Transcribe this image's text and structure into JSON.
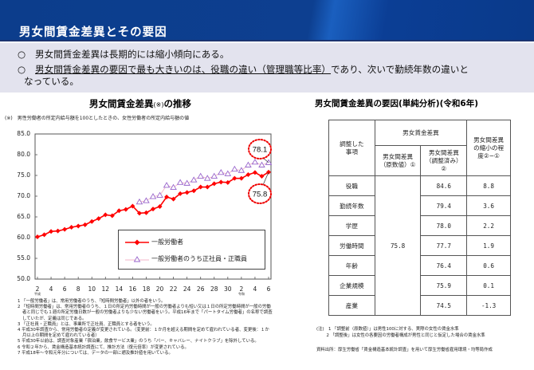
{
  "header": {
    "title": "男女間賃金差異とその要因"
  },
  "summary": {
    "bullets": [
      {
        "mark": "○",
        "text": "男女間賃金差異は長期的には縮小傾向にある。"
      },
      {
        "mark": "○",
        "underlined": "男女間賃金差異の要因で最も大きいのは、役職の違い（管理職等比率）",
        "rest": "であり、次いで勤続年数の違いと",
        "cont": "なっている。"
      }
    ]
  },
  "left_chart": {
    "title": "男女間賃金差異",
    "title_note": "(※)",
    "title_suffix": "の推移",
    "note": "(※)　男性労働者の所定内給与額を100としたときの、女性労働者の所定内給与額の値",
    "callouts": {
      "upper": "78.1",
      "lower": "75.8"
    },
    "legend": [
      "一般労働者",
      "一般労働者のうち正社員・正職員"
    ],
    "x_era_labels": {
      "heisei": "平成",
      "reiwa": "令和"
    },
    "footnotes": [
      "1 「一般労働者」は、常用労働者のうち、「短時間労働者」以外の者をいう。",
      "2 「短時間労働者」は、常用労働者のうち、１日の所定内労働時間が一般の労働者よりも短い又は１日の所定労働時間が一般の労働者と同じでも１週の所定労働日数が一般の労働者よりも少ない労働者をいう。平成16年まで「パートタイム労働者」の名称で調査していたが、定義は同じである。",
      "3 「正社員・正職員」とは、事業所で正社員、正職員とする者をいう。",
      "4 平成30年調査から、常用労働者の定義が変更されている。（変更前：１か月を超える期間を定めて雇われている者、変更後：１か月以上の期間を定めて雇われている者）",
      "5 平成30年以前は、調査対象産業「宿泊業，飲食サービス業」のうち「バー、キャバレー、ナイトクラブ」を除外している。",
      "6 令和２年から、賃金構造基本統計調査にて、推計方法（復元倍率）が変更されている。",
      "7 平成18年～令和元年分については、データの一部に遡及推計値を用いている。"
    ]
  },
  "chart_data": {
    "type": "line",
    "title": "男女間賃金差異(※)の推移",
    "xlabel": "",
    "ylabel": "",
    "ylim": [
      50.0,
      85.0
    ],
    "yticks": [
      "85.0",
      "80.0",
      "75.0",
      "70.0",
      "65.0",
      "60.0",
      "55.0",
      "50.0"
    ],
    "xtick_labels": [
      "2",
      "4",
      "6",
      "8",
      "10",
      "12",
      "14",
      "16",
      "18",
      "20",
      "22",
      "24",
      "26",
      "28",
      "30",
      "2",
      "4",
      "6"
    ],
    "x": [
      "H2",
      "H3",
      "H4",
      "H5",
      "H6",
      "H7",
      "H8",
      "H9",
      "H10",
      "H11",
      "H12",
      "H13",
      "H14",
      "H15",
      "H16",
      "H17",
      "H18",
      "H19",
      "H20",
      "H21",
      "H22",
      "H23",
      "H24",
      "H25",
      "H26",
      "H27",
      "H28",
      "H29",
      "H30",
      "R1",
      "R2",
      "R3",
      "R4",
      "R5",
      "R6"
    ],
    "series": [
      {
        "name": "一般労働者",
        "color": "#ff0000",
        "marker": "diamond",
        "values": [
          60.2,
          60.7,
          61.5,
          61.6,
          62.0,
          62.5,
          62.8,
          63.1,
          63.9,
          64.6,
          65.5,
          65.3,
          66.5,
          66.8,
          67.6,
          65.9,
          66.0,
          66.9,
          67.5,
          69.8,
          69.3,
          70.6,
          70.9,
          71.3,
          72.2,
          72.2,
          73.0,
          73.4,
          73.3,
          74.3,
          74.3,
          75.2,
          75.7,
          74.8,
          75.8
        ]
      },
      {
        "name": "一般労働者のうち正社員・正職員",
        "color": "#9966cc",
        "marker": "triangle-open",
        "values": [
          null,
          null,
          null,
          null,
          null,
          null,
          null,
          null,
          null,
          null,
          null,
          null,
          null,
          null,
          null,
          68.6,
          68.9,
          69.9,
          70.2,
          72.6,
          72.1,
          73.3,
          73.1,
          73.9,
          74.8,
          74.3,
          74.8,
          75.7,
          75.4,
          76.5,
          76.2,
          77.5,
          78.2,
          77.5,
          78.1
        ]
      }
    ],
    "annotations": [
      "78.1",
      "75.8"
    ],
    "legend_position": "inside-lower-right",
    "grid": false
  },
  "right_table": {
    "title": "男女間賃金差異の要因(単純分析)(令和6年)",
    "headers": {
      "item": "調整した事項",
      "group": "男女賃金差異",
      "raw": "男女間差異（原数値）①",
      "adjusted": "男女間差異（調整済み）②",
      "reduction": "男女間差異の縮小の程度②−①"
    },
    "raw_value": "75.8",
    "rows": [
      {
        "item": "役職",
        "adjusted": "84.6",
        "reduction": "8.8"
      },
      {
        "item": "勤続年数",
        "adjusted": "79.4",
        "reduction": "3.6"
      },
      {
        "item": "学歴",
        "adjusted": "78.0",
        "reduction": "2.2"
      },
      {
        "item": "労働時間",
        "adjusted": "77.7",
        "reduction": "1.9"
      },
      {
        "item": "年齢",
        "adjusted": "76.4",
        "reduction": "0.6"
      },
      {
        "item": "企業規模",
        "adjusted": "75.9",
        "reduction": "0.1"
      },
      {
        "item": "産業",
        "adjusted": "74.5",
        "reduction": "-1.3"
      }
    ],
    "notes_label": "(注)",
    "notes": [
      "1 「調整前（原数値）」は男性100に対する、実際の女性の賃金水準",
      "2 「調整後」は女性の各要因の労働者構成が男性と同じと仮定した場合の賃金水準"
    ],
    "source": "資料出所：厚生労働省「賃金構造基本統計調査」を用いて厚生労働省雇用環境・均等局作成"
  }
}
